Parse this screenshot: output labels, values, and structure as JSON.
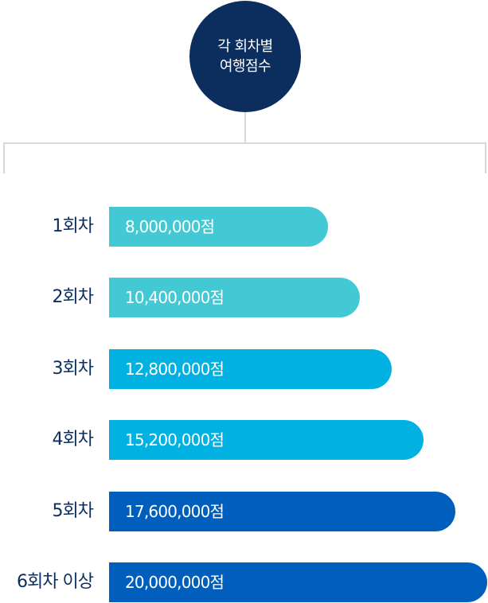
{
  "chart_data": {
    "type": "bar",
    "orientation": "horizontal",
    "title": [
      "각 회차별",
      "여행점수"
    ],
    "categories": [
      "1회차",
      "2회차",
      "3회차",
      "4회차",
      "5회차",
      "6회차 이상"
    ],
    "values": [
      8000000,
      10400000,
      12800000,
      15200000,
      17600000,
      20000000
    ],
    "value_labels": [
      "8,000,000점",
      "10,400,000점",
      "12,800,000점",
      "15,200,000점",
      "17,600,000점",
      "20,000,000점"
    ],
    "xlim": [
      0,
      20000000
    ],
    "colors": [
      "#43c9d3",
      "#43c9d3",
      "#00b1e1",
      "#00b1e1",
      "#005ebd",
      "#005ebd"
    ],
    "title_color": "#0b2e5f",
    "label_color": "#0b2e5f",
    "connector_color": "#d5d9de"
  }
}
